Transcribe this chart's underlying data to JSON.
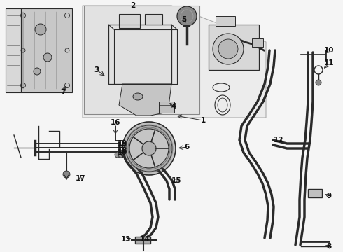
{
  "bg_color": "#f5f5f5",
  "fig_width": 4.9,
  "fig_height": 3.6,
  "dpi": 100,
  "line_color": "#2a2a2a",
  "text_color": "#111111",
  "light_gray": "#d8d8d8",
  "mid_gray": "#aaaaaa",
  "dark_gray": "#555555",
  "box_bg": "#e8e8e8",
  "inner_box_bg": "#dcdcdc"
}
